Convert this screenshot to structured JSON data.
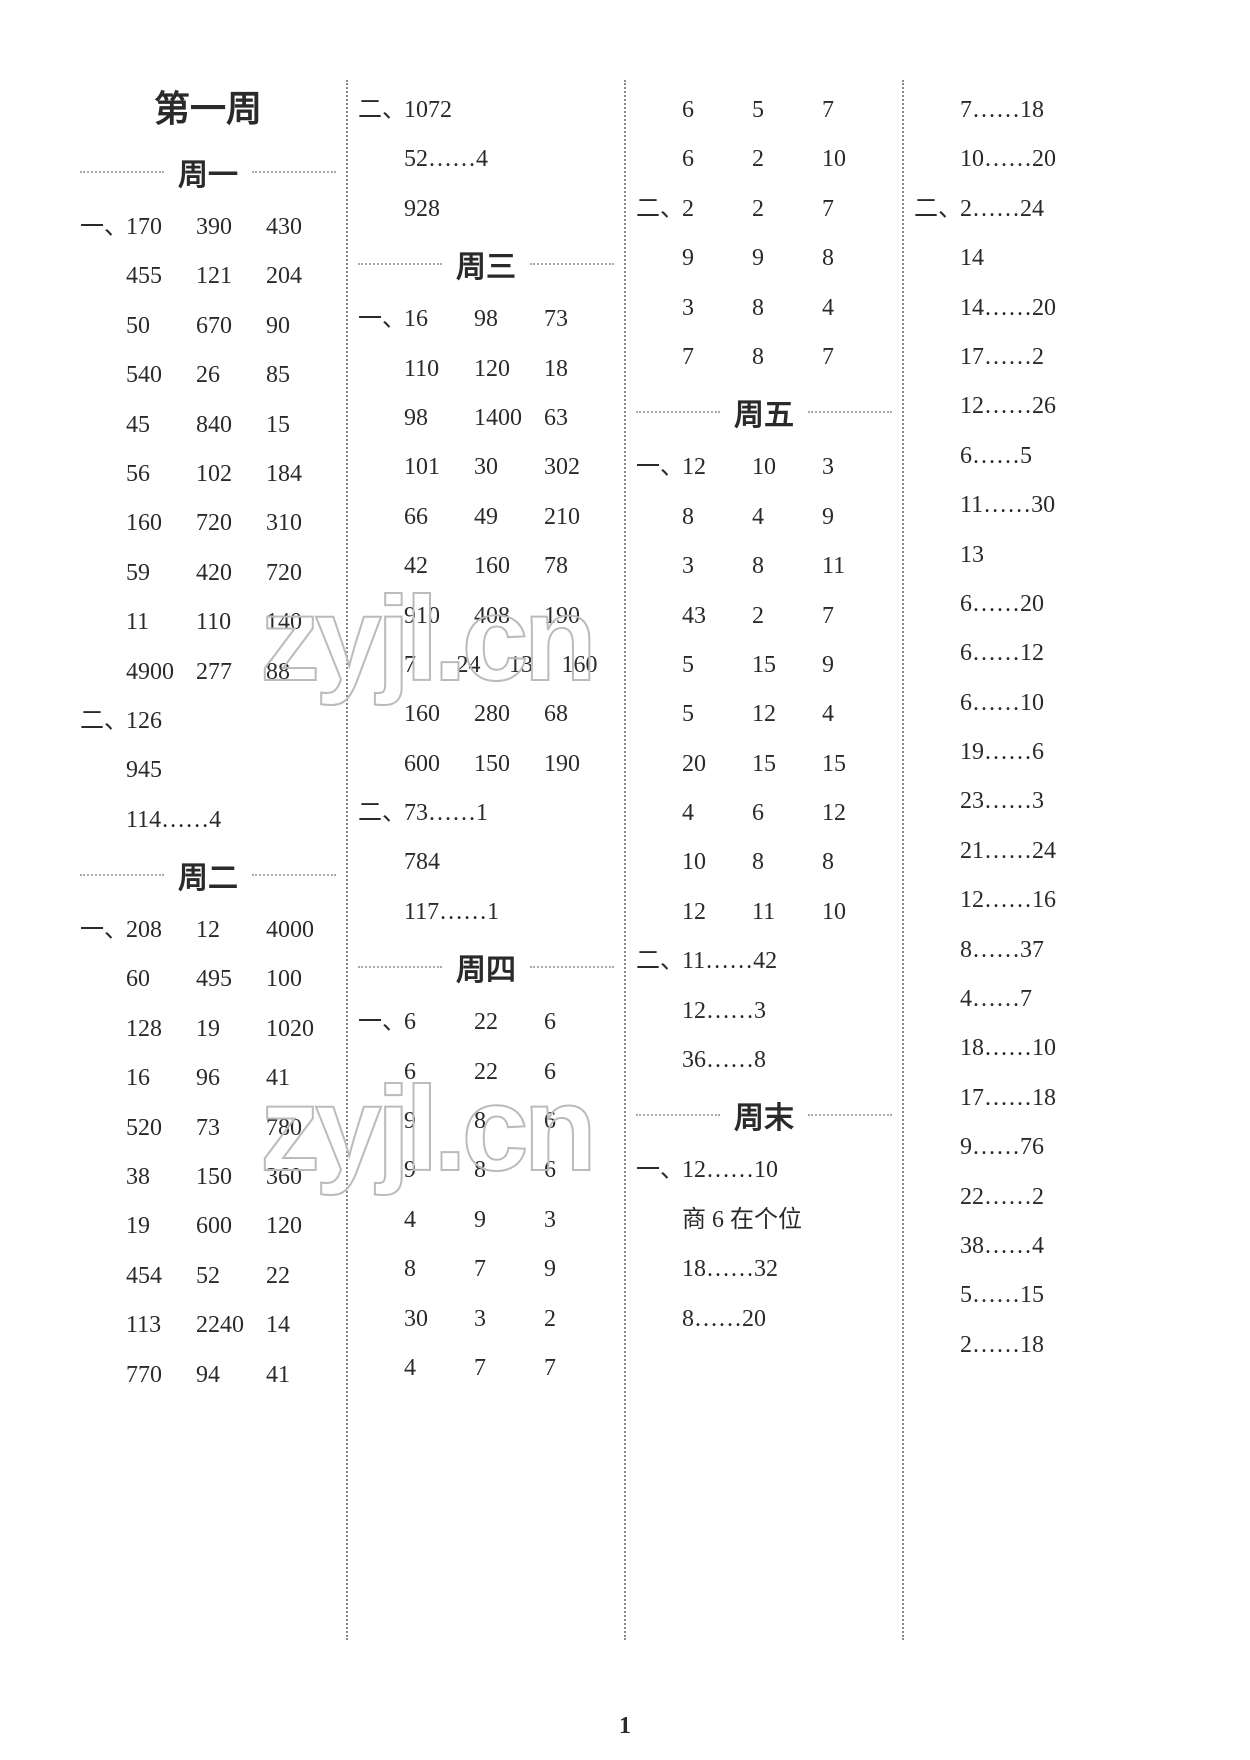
{
  "page_number": "1",
  "watermarks": [
    "zyjl.cn",
    "zyjl.cn"
  ],
  "columns": [
    {
      "blocks": [
        {
          "type": "title",
          "text": "第一周"
        },
        {
          "type": "day",
          "text": "周一"
        },
        {
          "type": "row",
          "marker": "一、",
          "cells": [
            "170",
            "390",
            "430"
          ]
        },
        {
          "type": "row",
          "cells": [
            "455",
            "121",
            "204"
          ]
        },
        {
          "type": "row",
          "cells": [
            "50",
            "670",
            "90"
          ]
        },
        {
          "type": "row",
          "cells": [
            "540",
            "26",
            "85"
          ]
        },
        {
          "type": "row",
          "cells": [
            "45",
            "840",
            "15"
          ]
        },
        {
          "type": "row",
          "cells": [
            "56",
            "102",
            "184"
          ]
        },
        {
          "type": "row",
          "cells": [
            "160",
            "720",
            "310"
          ]
        },
        {
          "type": "row",
          "cells": [
            "59",
            "420",
            "720"
          ]
        },
        {
          "type": "row",
          "cells": [
            "11",
            "110",
            "140"
          ]
        },
        {
          "type": "row",
          "cells": [
            "4900",
            "277",
            "88"
          ]
        },
        {
          "type": "row",
          "marker": "二、",
          "cells": [
            "126"
          ]
        },
        {
          "type": "row",
          "cells": [
            "945"
          ]
        },
        {
          "type": "row",
          "cells": [
            "114……4"
          ]
        },
        {
          "type": "day",
          "text": "周二"
        },
        {
          "type": "row",
          "marker": "一、",
          "cells": [
            "208",
            "12",
            "4000"
          ]
        },
        {
          "type": "row",
          "cells": [
            "60",
            "495",
            "100"
          ]
        },
        {
          "type": "row",
          "cells": [
            "128",
            "19",
            "1020"
          ]
        },
        {
          "type": "row",
          "cells": [
            "16",
            "96",
            "41"
          ]
        },
        {
          "type": "row",
          "cells": [
            "520",
            "73",
            "780"
          ]
        },
        {
          "type": "row",
          "cells": [
            "38",
            "150",
            "360"
          ]
        },
        {
          "type": "row",
          "cells": [
            "19",
            "600",
            "120"
          ]
        },
        {
          "type": "row",
          "cells": [
            "454",
            "52",
            "22"
          ]
        },
        {
          "type": "row",
          "cells": [
            "113",
            "2240",
            "14"
          ]
        },
        {
          "type": "row",
          "cells": [
            "770",
            "94",
            "41"
          ]
        }
      ]
    },
    {
      "blocks": [
        {
          "type": "row",
          "marker": "二、",
          "cells": [
            "1072"
          ]
        },
        {
          "type": "row",
          "cells": [
            "52……4"
          ]
        },
        {
          "type": "row",
          "cells": [
            "928"
          ]
        },
        {
          "type": "day",
          "text": "周三"
        },
        {
          "type": "row",
          "marker": "一、",
          "cells": [
            "16",
            "98",
            "73"
          ]
        },
        {
          "type": "row",
          "cells": [
            "110",
            "120",
            "18"
          ]
        },
        {
          "type": "row",
          "cells": [
            "98",
            "1400",
            "63"
          ]
        },
        {
          "type": "row",
          "cells": [
            "101",
            "30",
            "302"
          ]
        },
        {
          "type": "row",
          "cells": [
            "66",
            "49",
            "210"
          ]
        },
        {
          "type": "row",
          "cells": [
            "42",
            "160",
            "78"
          ]
        },
        {
          "type": "row",
          "cells": [
            "910",
            "408",
            "190"
          ]
        },
        {
          "type": "row",
          "cells": [
            "7",
            "24",
            "13",
            "160"
          ]
        },
        {
          "type": "row",
          "cells": [
            "160",
            "280",
            "68"
          ]
        },
        {
          "type": "row",
          "cells": [
            "600",
            "150",
            "190"
          ]
        },
        {
          "type": "row",
          "marker": "二、",
          "cells": [
            "73……1"
          ]
        },
        {
          "type": "row",
          "cells": [
            "784"
          ]
        },
        {
          "type": "row",
          "cells": [
            "117……1"
          ]
        },
        {
          "type": "day",
          "text": "周四"
        },
        {
          "type": "row",
          "marker": "一、",
          "cells": [
            "6",
            "22",
            "6"
          ]
        },
        {
          "type": "row",
          "cells": [
            "6",
            "22",
            "6"
          ]
        },
        {
          "type": "row",
          "cells": [
            "9",
            "8",
            "6"
          ]
        },
        {
          "type": "row",
          "cells": [
            "9",
            "8",
            "6"
          ]
        },
        {
          "type": "row",
          "cells": [
            "4",
            "9",
            "3"
          ]
        },
        {
          "type": "row",
          "cells": [
            "8",
            "7",
            "9"
          ]
        },
        {
          "type": "row",
          "cells": [
            "30",
            "3",
            "2"
          ]
        },
        {
          "type": "row",
          "cells": [
            "4",
            "7",
            "7"
          ]
        }
      ]
    },
    {
      "blocks": [
        {
          "type": "row",
          "cells": [
            "6",
            "5",
            "7"
          ]
        },
        {
          "type": "row",
          "cells": [
            "6",
            "2",
            "10"
          ]
        },
        {
          "type": "row",
          "marker": "二、",
          "cells": [
            "2",
            "2",
            "7"
          ]
        },
        {
          "type": "row",
          "cells": [
            "9",
            "9",
            "8"
          ]
        },
        {
          "type": "row",
          "cells": [
            "3",
            "8",
            "4"
          ]
        },
        {
          "type": "row",
          "cells": [
            "7",
            "8",
            "7"
          ]
        },
        {
          "type": "day",
          "text": "周五"
        },
        {
          "type": "row",
          "marker": "一、",
          "cells": [
            "12",
            "10",
            "3"
          ]
        },
        {
          "type": "row",
          "cells": [
            "8",
            "4",
            "9"
          ]
        },
        {
          "type": "row",
          "cells": [
            "3",
            "8",
            "11"
          ]
        },
        {
          "type": "row",
          "cells": [
            "43",
            "2",
            "7"
          ]
        },
        {
          "type": "row",
          "cells": [
            "5",
            "15",
            "9"
          ]
        },
        {
          "type": "row",
          "cells": [
            "5",
            "12",
            "4"
          ]
        },
        {
          "type": "row",
          "cells": [
            "20",
            "15",
            "15"
          ]
        },
        {
          "type": "row",
          "cells": [
            "4",
            "6",
            "12"
          ]
        },
        {
          "type": "row",
          "cells": [
            "10",
            "8",
            "8"
          ]
        },
        {
          "type": "row",
          "cells": [
            "12",
            "11",
            "10"
          ]
        },
        {
          "type": "row",
          "marker": "二、",
          "cells": [
            "11……42"
          ]
        },
        {
          "type": "row",
          "cells": [
            "12……3"
          ]
        },
        {
          "type": "row",
          "cells": [
            "36……8"
          ]
        },
        {
          "type": "day",
          "text": "周末"
        },
        {
          "type": "row",
          "marker": "一、",
          "cells": [
            "12……10"
          ]
        },
        {
          "type": "row",
          "cells": [
            "商 6 在个位"
          ]
        },
        {
          "type": "row",
          "cells": [
            "18……32"
          ]
        },
        {
          "type": "row",
          "cells": [
            "8……20"
          ]
        }
      ]
    },
    {
      "blocks": [
        {
          "type": "row",
          "cells": [
            "7……18"
          ]
        },
        {
          "type": "row",
          "cells": [
            "10……20"
          ]
        },
        {
          "type": "row",
          "marker": "二、",
          "cells": [
            "2……24"
          ]
        },
        {
          "type": "row",
          "cells": [
            "14"
          ]
        },
        {
          "type": "row",
          "cells": [
            "14……20"
          ]
        },
        {
          "type": "row",
          "cells": [
            "17……2"
          ]
        },
        {
          "type": "row",
          "cells": [
            "12……26"
          ]
        },
        {
          "type": "row",
          "cells": [
            "6……5"
          ]
        },
        {
          "type": "row",
          "cells": [
            "11……30"
          ]
        },
        {
          "type": "row",
          "cells": [
            "13"
          ]
        },
        {
          "type": "row",
          "cells": [
            "6……20"
          ]
        },
        {
          "type": "row",
          "cells": [
            "6……12"
          ]
        },
        {
          "type": "row",
          "cells": [
            "6……10"
          ]
        },
        {
          "type": "row",
          "cells": [
            "19……6"
          ]
        },
        {
          "type": "row",
          "cells": [
            "23……3"
          ]
        },
        {
          "type": "row",
          "cells": [
            "21……24"
          ]
        },
        {
          "type": "row",
          "cells": [
            "12……16"
          ]
        },
        {
          "type": "row",
          "cells": [
            "8……37"
          ]
        },
        {
          "type": "row",
          "cells": [
            "4……7"
          ]
        },
        {
          "type": "row",
          "cells": [
            "18……10"
          ]
        },
        {
          "type": "row",
          "cells": [
            "17……18"
          ]
        },
        {
          "type": "row",
          "cells": [
            "9……76"
          ]
        },
        {
          "type": "row",
          "cells": [
            "22……2"
          ]
        },
        {
          "type": "row",
          "cells": [
            "38……4"
          ]
        },
        {
          "type": "row",
          "cells": [
            "5……15"
          ]
        },
        {
          "type": "row",
          "cells": [
            "2……18"
          ]
        }
      ]
    }
  ]
}
